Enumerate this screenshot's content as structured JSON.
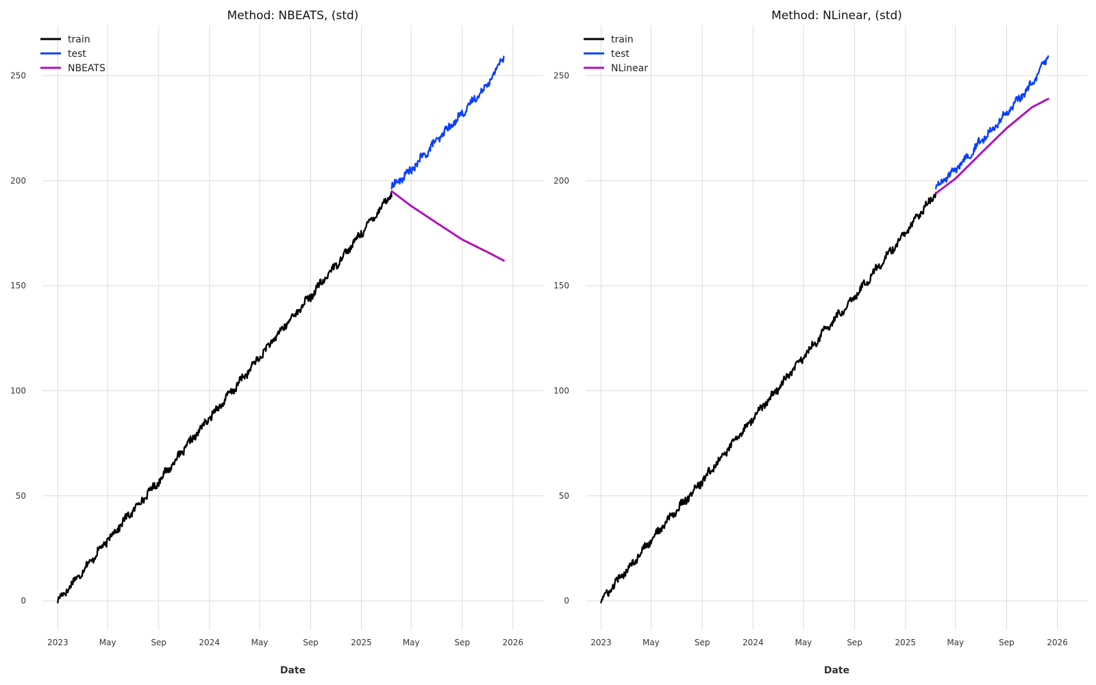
{
  "chart_data": [
    {
      "type": "line",
      "title": "Method: NBEATS, (std)",
      "xlabel": "Date",
      "ylabel": "",
      "ylim": [
        -14,
        274
      ],
      "yticks": [
        0,
        50,
        100,
        150,
        200,
        250
      ],
      "xlim": [
        "2022-11-25",
        "2026-03-15"
      ],
      "xticks": [
        {
          "date": "2023-01-01",
          "label": "2023"
        },
        {
          "date": "2023-05-01",
          "label": "May"
        },
        {
          "date": "2023-09-01",
          "label": "Sep"
        },
        {
          "date": "2024-01-01",
          "label": "2024"
        },
        {
          "date": "2024-05-01",
          "label": "May"
        },
        {
          "date": "2024-09-01",
          "label": "Sep"
        },
        {
          "date": "2025-01-01",
          "label": "2025"
        },
        {
          "date": "2025-05-01",
          "label": "May"
        },
        {
          "date": "2025-09-01",
          "label": "Sep"
        },
        {
          "date": "2026-01-01",
          "label": "2026"
        }
      ],
      "grid": true,
      "legend_position": "top-left",
      "series": [
        {
          "name": "train",
          "color": "#000000",
          "style": "noisy",
          "x": [
            "2023-01-01",
            "2023-03-01",
            "2023-05-01",
            "2023-07-01",
            "2023-09-01",
            "2023-11-01",
            "2024-01-01",
            "2024-03-01",
            "2024-05-01",
            "2024-07-01",
            "2024-09-01",
            "2024-11-01",
            "2025-01-01",
            "2025-03-15"
          ],
          "y": [
            0,
            14,
            29,
            43,
            57,
            72,
            87,
            101,
            116,
            131,
            145,
            160,
            175,
            194
          ]
        },
        {
          "name": "test",
          "color": "#0a3fff",
          "style": "noisy",
          "x": [
            "2025-03-15",
            "2025-05-01",
            "2025-07-01",
            "2025-09-01",
            "2025-11-01",
            "2025-12-10"
          ],
          "y": [
            197,
            205,
            219,
            232,
            246,
            259
          ]
        },
        {
          "name": "NBEATS",
          "color": "#b30fbf",
          "style": "smooth",
          "x": [
            "2025-03-15",
            "2025-05-01",
            "2025-07-01",
            "2025-09-01",
            "2025-11-01",
            "2025-12-10"
          ],
          "y": [
            195,
            188,
            180,
            172,
            166,
            162
          ]
        }
      ]
    },
    {
      "type": "line",
      "title": "Method: NLinear, (std)",
      "xlabel": "Date",
      "ylabel": "",
      "ylim": [
        -14,
        274
      ],
      "yticks": [
        0,
        50,
        100,
        150,
        200,
        250
      ],
      "xlim": [
        "2022-11-25",
        "2026-03-15"
      ],
      "xticks": [
        {
          "date": "2023-01-01",
          "label": "2023"
        },
        {
          "date": "2023-05-01",
          "label": "May"
        },
        {
          "date": "2023-09-01",
          "label": "Sep"
        },
        {
          "date": "2024-01-01",
          "label": "2024"
        },
        {
          "date": "2024-05-01",
          "label": "May"
        },
        {
          "date": "2024-09-01",
          "label": "Sep"
        },
        {
          "date": "2025-01-01",
          "label": "2025"
        },
        {
          "date": "2025-05-01",
          "label": "May"
        },
        {
          "date": "2025-09-01",
          "label": "Sep"
        },
        {
          "date": "2026-01-01",
          "label": "2026"
        }
      ],
      "grid": true,
      "legend_position": "top-left",
      "series": [
        {
          "name": "train",
          "color": "#000000",
          "style": "noisy",
          "x": [
            "2023-01-01",
            "2023-03-01",
            "2023-05-01",
            "2023-07-01",
            "2023-09-01",
            "2023-11-01",
            "2024-01-01",
            "2024-03-01",
            "2024-05-01",
            "2024-07-01",
            "2024-09-01",
            "2024-11-01",
            "2025-01-01",
            "2025-03-15"
          ],
          "y": [
            0,
            14,
            29,
            43,
            57,
            72,
            87,
            101,
            116,
            131,
            145,
            160,
            175,
            194
          ]
        },
        {
          "name": "test",
          "color": "#0a3fff",
          "style": "noisy",
          "x": [
            "2025-03-15",
            "2025-05-01",
            "2025-07-01",
            "2025-09-01",
            "2025-11-01",
            "2025-12-10"
          ],
          "y": [
            197,
            205,
            219,
            232,
            246,
            259
          ]
        },
        {
          "name": "NLinear",
          "color": "#b30fbf",
          "style": "smooth",
          "x": [
            "2025-03-15",
            "2025-05-01",
            "2025-07-01",
            "2025-09-01",
            "2025-11-01",
            "2025-12-10"
          ],
          "y": [
            194,
            201,
            213,
            225,
            235,
            239
          ]
        }
      ]
    }
  ]
}
